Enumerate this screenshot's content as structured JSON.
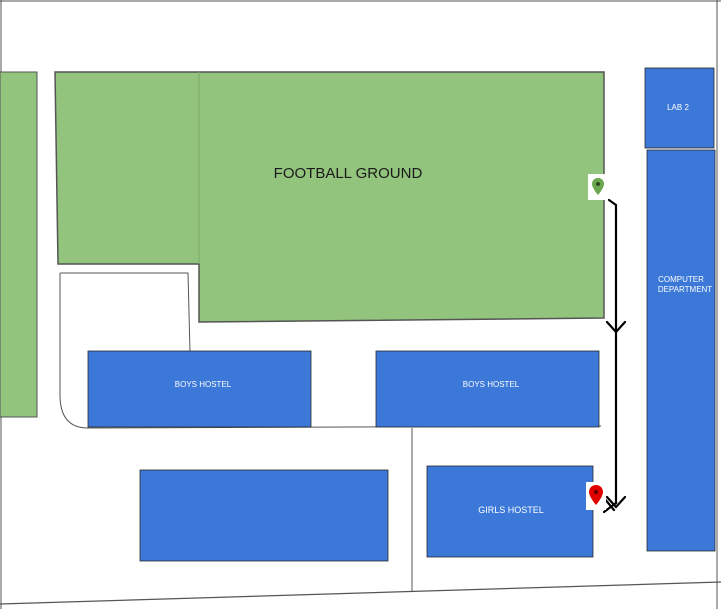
{
  "map": {
    "colors": {
      "building": "#3b78d8",
      "field": "#93c47d",
      "route": "#000000",
      "start_pin": "#6aa84f",
      "end_pin": "#e00000"
    },
    "labels": {
      "football_ground": "FOOTBALL GROUND",
      "lab2": "LAB 2",
      "computer_department_line1": "COMPUTER",
      "computer_department_line2": "DEPARTMENT",
      "boys_hostel_left": "BOYS HOSTEL",
      "boys_hostel_right": "BOYS HOSTEL",
      "girls_hostel": "GIRLS HOSTEL"
    },
    "markers": {
      "start": "green-pin-icon",
      "end": "red-pin-icon"
    }
  }
}
